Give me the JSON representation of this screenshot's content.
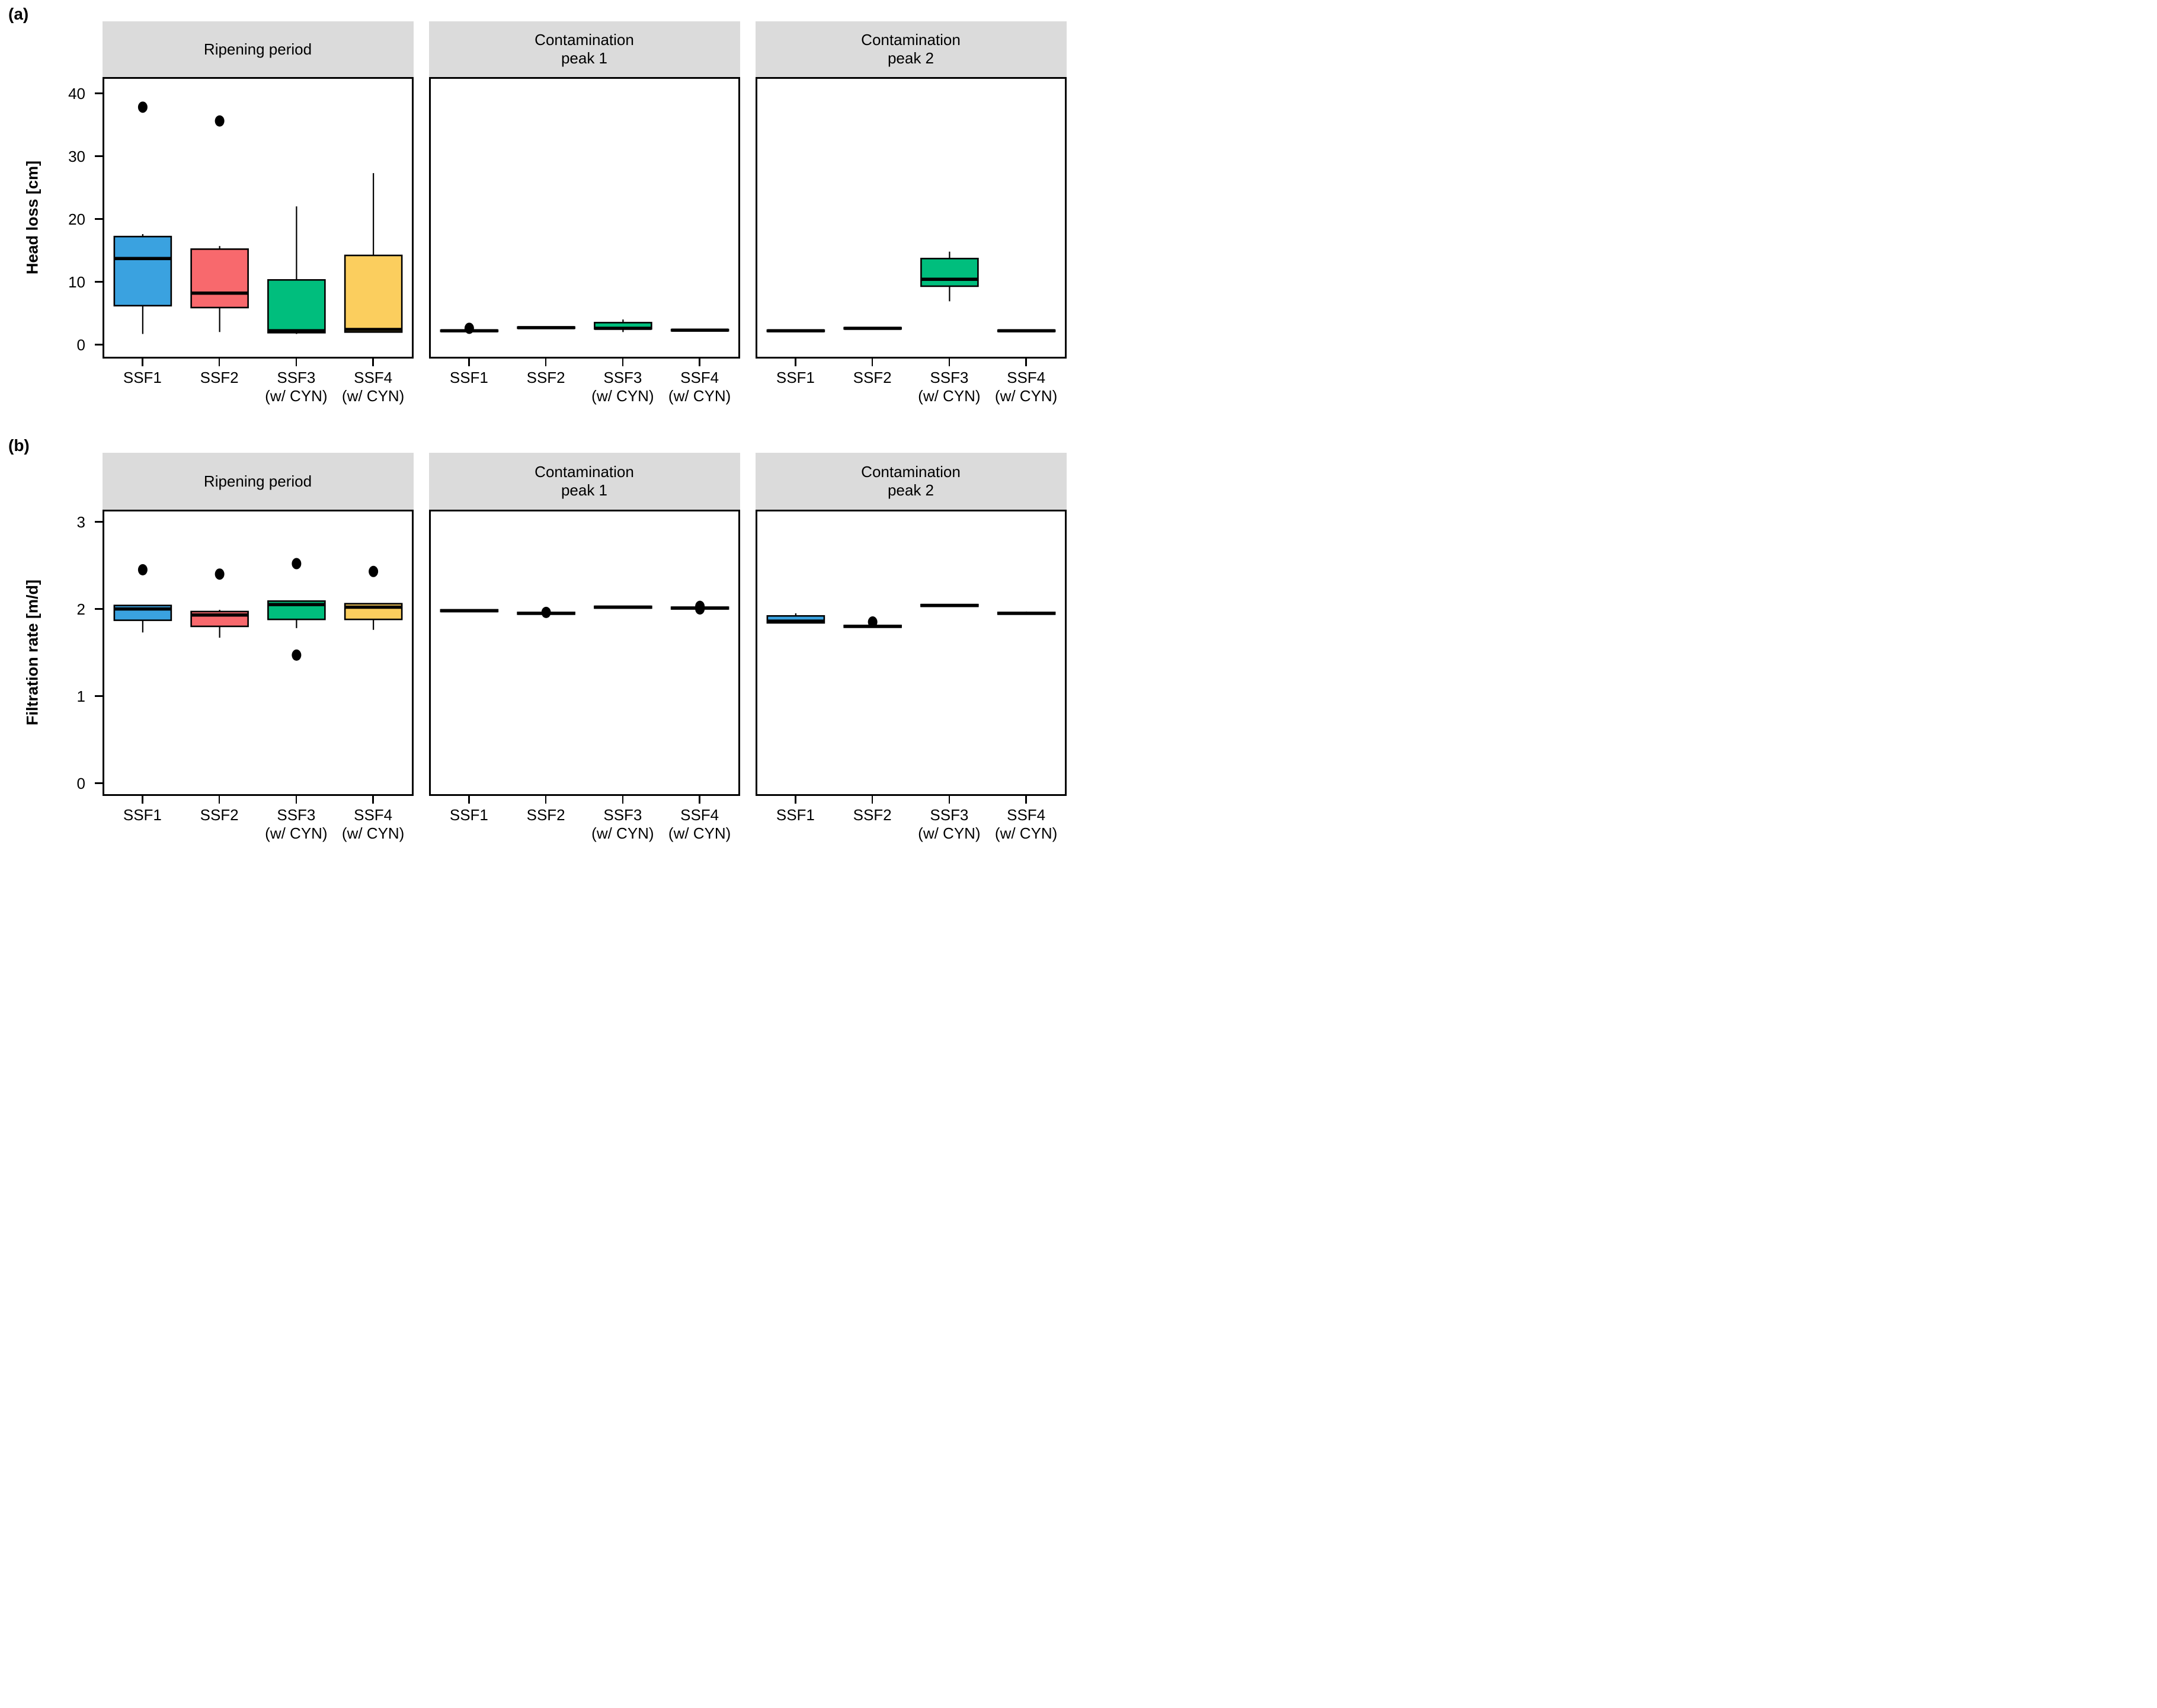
{
  "figure": {
    "row_labels": [
      "(a)",
      "(b)"
    ],
    "strip_bg": "#DBDBDB",
    "box_colors": [
      "#3AA2E0",
      "#F8696D",
      "#00BE7D",
      "#FBCE5E"
    ],
    "categories": [
      [
        "SSF1"
      ],
      [
        "SSF2"
      ],
      [
        "SSF3",
        "(w/ CYN)"
      ],
      [
        "SSF4",
        "(w/ CYN)"
      ]
    ]
  },
  "chart_data": [
    {
      "type": "box",
      "ylabel": "Head loss [cm]",
      "yticks": [
        0,
        10,
        20,
        30,
        40
      ],
      "ylim": [
        -2.2,
        42.6
      ],
      "grid": false,
      "legend": "none",
      "facets": [
        {
          "title_lines": [
            "Ripening period"
          ],
          "boxes": [
            {
              "category": "SSF1",
              "whisker_low": 1.7,
              "q1": 6.2,
              "median": 13.7,
              "q3": 17.2,
              "whisker_high": 17.6,
              "outliers": [
                37.8
              ]
            },
            {
              "category": "SSF2",
              "whisker_low": 2.0,
              "q1": 5.9,
              "median": 8.2,
              "q3": 15.2,
              "whisker_high": 15.7,
              "outliers": [
                35.6
              ]
            },
            {
              "category": "SSF3",
              "whisker_low": 1.7,
              "q1": 1.9,
              "median": 2.2,
              "q3": 10.3,
              "whisker_high": 22.0,
              "outliers": []
            },
            {
              "category": "SSF4",
              "whisker_low": 1.9,
              "q1": 2.0,
              "median": 2.4,
              "q3": 14.2,
              "whisker_high": 27.3,
              "outliers": []
            }
          ]
        },
        {
          "title_lines": [
            "Contamination",
            "peak 1"
          ],
          "boxes": [
            {
              "category": "SSF1",
              "whisker_low": 2.0,
              "q1": 2.1,
              "median": 2.2,
              "q3": 2.3,
              "whisker_high": 2.4,
              "outliers": [
                2.6
              ]
            },
            {
              "category": "SSF2",
              "whisker_low": 2.6,
              "q1": 2.6,
              "median": 2.7,
              "q3": 2.8,
              "whisker_high": 2.8,
              "outliers": []
            },
            {
              "category": "SSF3",
              "whisker_low": 2.0,
              "q1": 2.5,
              "median": 2.6,
              "q3": 3.5,
              "whisker_high": 4.0,
              "outliers": []
            },
            {
              "category": "SSF4",
              "whisker_low": 2.2,
              "q1": 2.2,
              "median": 2.3,
              "q3": 2.4,
              "whisker_high": 2.4,
              "outliers": []
            }
          ]
        },
        {
          "title_lines": [
            "Contamination",
            "peak 2"
          ],
          "boxes": [
            {
              "category": "SSF1",
              "whisker_low": 2.1,
              "q1": 2.1,
              "median": 2.2,
              "q3": 2.3,
              "whisker_high": 2.3,
              "outliers": []
            },
            {
              "category": "SSF2",
              "whisker_low": 2.5,
              "q1": 2.5,
              "median": 2.6,
              "q3": 2.7,
              "whisker_high": 2.7,
              "outliers": []
            },
            {
              "category": "SSF3",
              "whisker_low": 6.9,
              "q1": 9.3,
              "median": 10.4,
              "q3": 13.7,
              "whisker_high": 14.8,
              "outliers": []
            },
            {
              "category": "SSF4",
              "whisker_low": 2.1,
              "q1": 2.1,
              "median": 2.2,
              "q3": 2.3,
              "whisker_high": 2.3,
              "outliers": []
            }
          ]
        }
      ]
    },
    {
      "type": "box",
      "ylabel": "Filtration rate [m/d]",
      "yticks": [
        0,
        1,
        2,
        3
      ],
      "ylim": [
        -0.15,
        3.14
      ],
      "grid": false,
      "legend": "none",
      "facets": [
        {
          "title_lines": [
            "Ripening period"
          ],
          "boxes": [
            {
              "category": "SSF1",
              "whisker_low": 1.73,
              "q1": 1.87,
              "median": 2.0,
              "q3": 2.04,
              "whisker_high": 2.04,
              "outliers": [
                2.45
              ]
            },
            {
              "category": "SSF2",
              "whisker_low": 1.67,
              "q1": 1.8,
              "median": 1.93,
              "q3": 1.97,
              "whisker_high": 1.99,
              "outliers": [
                2.4
              ]
            },
            {
              "category": "SSF3",
              "whisker_low": 1.78,
              "q1": 1.88,
              "median": 2.05,
              "q3": 2.09,
              "whisker_high": 2.09,
              "outliers": [
                2.52,
                1.47
              ]
            },
            {
              "category": "SSF4",
              "whisker_low": 1.76,
              "q1": 1.88,
              "median": 2.02,
              "q3": 2.06,
              "whisker_high": 2.06,
              "outliers": [
                2.43
              ]
            }
          ]
        },
        {
          "title_lines": [
            "Contamination",
            "peak 1"
          ],
          "boxes": [
            {
              "category": "SSF1",
              "whisker_low": 1.97,
              "q1": 1.97,
              "median": 1.98,
              "q3": 1.99,
              "whisker_high": 1.99,
              "outliers": []
            },
            {
              "category": "SSF2",
              "whisker_low": 1.94,
              "q1": 1.94,
              "median": 1.95,
              "q3": 1.96,
              "whisker_high": 1.96,
              "outliers": [
                1.96
              ]
            },
            {
              "category": "SSF3",
              "whisker_low": 2.01,
              "q1": 2.01,
              "median": 2.02,
              "q3": 2.03,
              "whisker_high": 2.03,
              "outliers": []
            },
            {
              "category": "SSF4",
              "whisker_low": 1.99,
              "q1": 2.0,
              "median": 2.01,
              "q3": 2.02,
              "whisker_high": 2.02,
              "outliers": [
                2.0,
                2.03
              ]
            }
          ]
        },
        {
          "title_lines": [
            "Contamination",
            "peak 2"
          ],
          "boxes": [
            {
              "category": "SSF1",
              "whisker_low": 1.84,
              "q1": 1.84,
              "median": 1.86,
              "q3": 1.92,
              "whisker_high": 1.95,
              "outliers": []
            },
            {
              "category": "SSF2",
              "whisker_low": 1.79,
              "q1": 1.79,
              "median": 1.8,
              "q3": 1.81,
              "whisker_high": 1.81,
              "outliers": [
                1.85
              ]
            },
            {
              "category": "SSF3",
              "whisker_low": 2.03,
              "q1": 2.03,
              "median": 2.04,
              "q3": 2.05,
              "whisker_high": 2.05,
              "outliers": []
            },
            {
              "category": "SSF4",
              "whisker_low": 1.94,
              "q1": 1.94,
              "median": 1.95,
              "q3": 1.96,
              "whisker_high": 1.97,
              "outliers": []
            }
          ]
        }
      ]
    }
  ]
}
